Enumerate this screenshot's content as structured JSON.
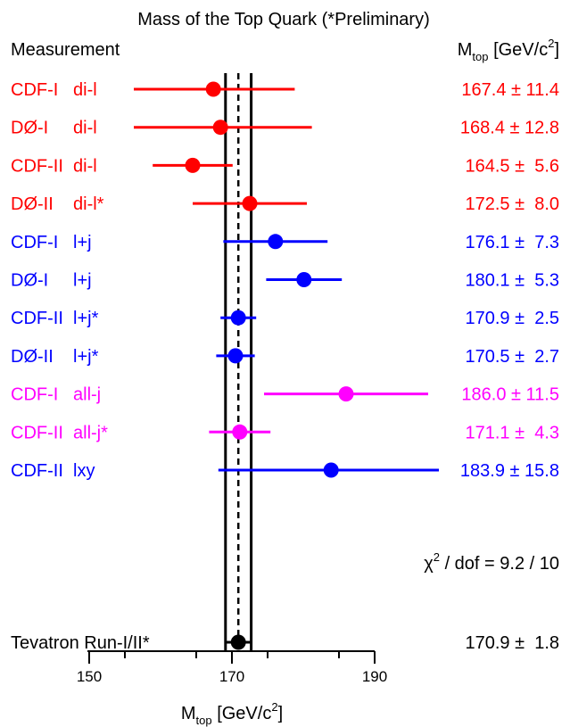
{
  "chart_data": {
    "type": "scatter",
    "title": "Mass of the Top Quark (*Preliminary)",
    "header_left": "Measurement",
    "header_right_var": "M",
    "header_right_sub": "top",
    "header_right_units": "[GeV/c",
    "header_right_sup": "2",
    "header_right_close": "]",
    "xlabel_var": "M",
    "xlabel_sub": "top",
    "xlabel_units": "[GeV/c",
    "xlabel_sup": "2",
    "xlabel_close": "]",
    "xlim": [
      150,
      190
    ],
    "xticks": [
      "150",
      "170",
      "190"
    ],
    "combined_band": {
      "center": 170.9,
      "err": 1.8
    },
    "colors": {
      "dilepton": "#ff0000",
      "lepton_jets": "#0000ff",
      "all_jets": "#ff00ff",
      "combined": "#000000"
    },
    "chi2": {
      "symbol": "χ",
      "sup": "2",
      "rest": " / dof  =  9.2 / 10"
    },
    "measurements": [
      {
        "experiment": "CDF-I",
        "channel": "di-l",
        "value": 167.4,
        "err": 11.4,
        "value_text": "167.4",
        "err_text": "11.4",
        "color": "#ff0000"
      },
      {
        "experiment": "DØ-I",
        "channel": "di-l",
        "value": 168.4,
        "err": 12.8,
        "value_text": "168.4",
        "err_text": "12.8",
        "color": "#ff0000"
      },
      {
        "experiment": "CDF-II",
        "channel": "di-l",
        "value": 164.5,
        "err": 5.6,
        "value_text": "164.5",
        "err_text": "5.6",
        "color": "#ff0000"
      },
      {
        "experiment": "DØ-II",
        "channel": "di-l*",
        "value": 172.5,
        "err": 8.0,
        "value_text": "172.5",
        "err_text": "8.0",
        "color": "#ff0000"
      },
      {
        "experiment": "CDF-I",
        "channel": "l+j",
        "value": 176.1,
        "err": 7.3,
        "value_text": "176.1",
        "err_text": "7.3",
        "color": "#0000ff"
      },
      {
        "experiment": "DØ-I",
        "channel": "l+j",
        "value": 180.1,
        "err": 5.3,
        "value_text": "180.1",
        "err_text": "5.3",
        "color": "#0000ff"
      },
      {
        "experiment": "CDF-II",
        "channel": "l+j*",
        "value": 170.9,
        "err": 2.5,
        "value_text": "170.9",
        "err_text": "2.5",
        "color": "#0000ff"
      },
      {
        "experiment": "DØ-II",
        "channel": "l+j*",
        "value": 170.5,
        "err": 2.7,
        "value_text": "170.5",
        "err_text": "2.7",
        "color": "#0000ff"
      },
      {
        "experiment": "CDF-I",
        "channel": "all-j",
        "value": 186.0,
        "err": 11.5,
        "value_text": "186.0",
        "err_text": "11.5",
        "color": "#ff00ff"
      },
      {
        "experiment": "CDF-II",
        "channel": "all-j*",
        "value": 171.1,
        "err": 4.3,
        "value_text": "171.1",
        "err_text": "4.3",
        "color": "#ff00ff"
      },
      {
        "experiment": "CDF-II",
        "channel": "lxy",
        "value": 183.9,
        "err": 15.8,
        "value_text": "183.9",
        "err_text": "15.8",
        "color": "#0000ff"
      }
    ],
    "combined": {
      "label": "Tevatron Run-I/II*",
      "value": 170.9,
      "err": 1.8,
      "value_text": "170.9",
      "err_text": "1.8",
      "color": "#000000"
    },
    "pm": "±"
  }
}
